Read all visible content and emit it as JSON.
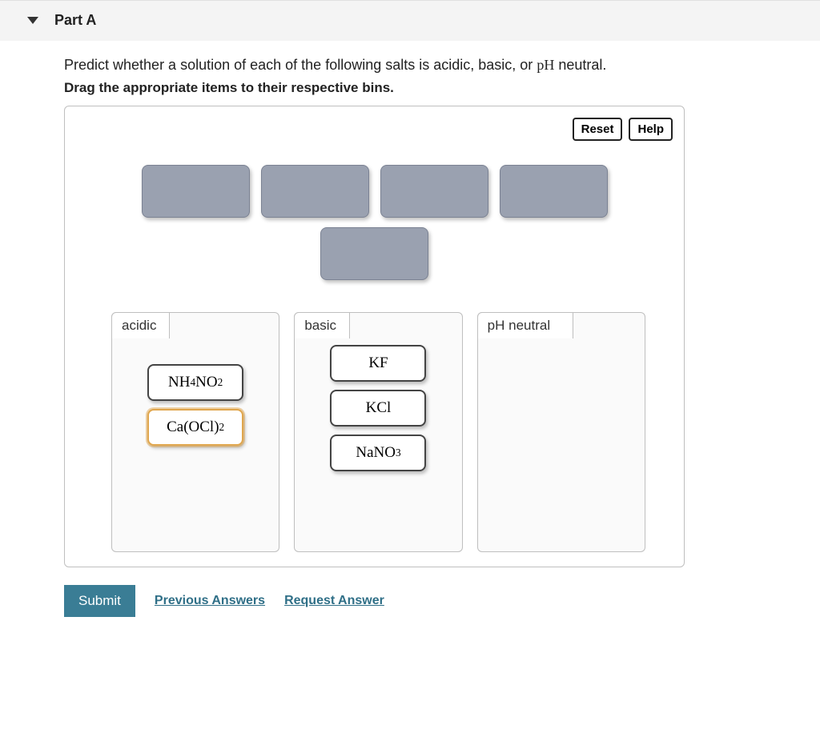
{
  "part": {
    "label": "Part A",
    "instruction_prefix": "Predict whether a solution of each of the following salts is acidic, basic, or ",
    "instruction_ph": "pH",
    "instruction_suffix": " neutral.",
    "drag_instruction": "Drag the appropriate items to their respective bins."
  },
  "toolbar": {
    "reset": "Reset",
    "help": "Help"
  },
  "slots": {
    "row1_count": 4,
    "row2_count": 1,
    "bg_color": "#9aa1b0",
    "border_color": "#7b8293"
  },
  "bins": [
    {
      "label": "acidic",
      "items": [
        {
          "html": "NH<sub>4</sub>NO<sub>2</sub>",
          "selected": false
        },
        {
          "html": "Ca(OCl)<sub>2</sub>",
          "selected": true
        }
      ]
    },
    {
      "label": "basic",
      "items": [
        {
          "html": "KF",
          "selected": false
        },
        {
          "html": "KCl",
          "selected": false
        },
        {
          "html": "NaNO<sub>3</sub>",
          "selected": false
        }
      ]
    },
    {
      "label": "pH neutral",
      "items": []
    }
  ],
  "actions": {
    "submit": "Submit",
    "previous_answers": "Previous Answers",
    "request_answer": "Request Answer"
  },
  "colors": {
    "header_bg": "#f4f4f4",
    "border": "#bfbfbf",
    "submit_bg": "#3a7d95",
    "link": "#2f6f87",
    "chip_selected_border": "#e0a64d"
  }
}
